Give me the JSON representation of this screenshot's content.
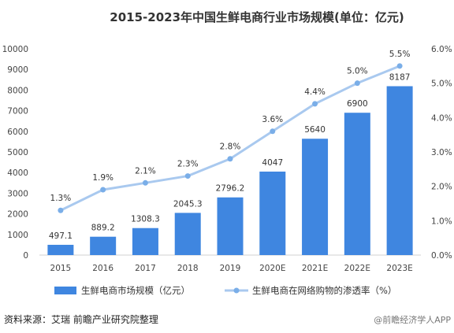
{
  "chart_data": {
    "type": "bar",
    "title": "2015-2023年中国生鲜电商行业市场规模(单位：亿元)",
    "categories": [
      "2015",
      "2016",
      "2017",
      "2018",
      "2019",
      "2020E",
      "2021E",
      "2022E",
      "2023E"
    ],
    "series": [
      {
        "name": "生鲜电商市场规模（亿元）",
        "type": "bar",
        "axis": "left",
        "values": [
          497.1,
          889.2,
          1308.3,
          2045.3,
          2796.2,
          4047,
          5640,
          6900,
          8187
        ],
        "labels": [
          "497.1",
          "889.2",
          "1308.3",
          "2045.3",
          "2796.2",
          "4047",
          "5640",
          "6900",
          "8187"
        ],
        "color": "#3f86e0"
      },
      {
        "name": "生鲜电商在网络购物的渗透率（%）",
        "type": "line",
        "axis": "right",
        "values": [
          1.3,
          1.9,
          2.1,
          2.3,
          2.8,
          3.6,
          4.4,
          5.0,
          5.5
        ],
        "labels": [
          "1.3%",
          "1.9%",
          "2.1%",
          "2.3%",
          "2.8%",
          "3.6%",
          "4.4%",
          "5.0%",
          "5.5%"
        ],
        "color": "#a9c9ef",
        "marker_color": "#7aaee8"
      }
    ],
    "ylim": [
      0,
      10000
    ],
    "yticks": [
      "0",
      "1000",
      "2000",
      "3000",
      "4000",
      "5000",
      "6000",
      "7000",
      "8000",
      "9000",
      "10000"
    ],
    "y2lim": [
      0,
      6
    ],
    "y2ticks": [
      "0.0%",
      "1.0%",
      "2.0%",
      "3.0%",
      "4.0%",
      "5.0%",
      "6.0%"
    ],
    "legend_position": "bottom",
    "grid": false
  },
  "source": "资料来源：艾瑞 前瞻产业研究院整理",
  "watermark": "@前瞻经济学人APP"
}
